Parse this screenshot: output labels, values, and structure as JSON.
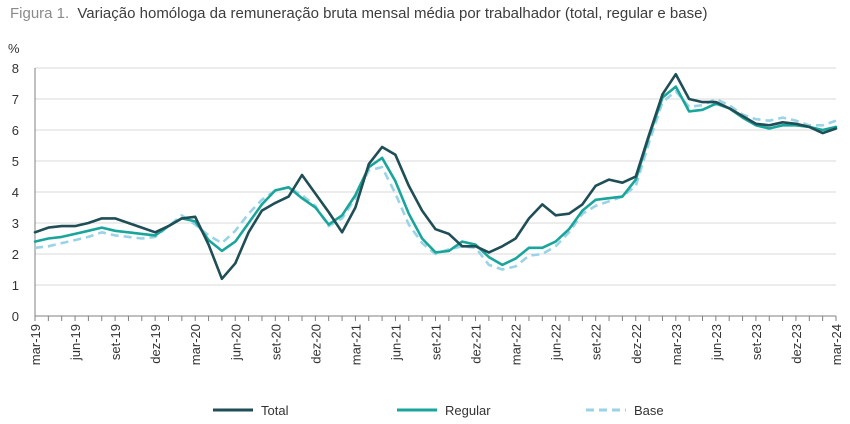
{
  "chart_data": {
    "type": "line",
    "title_prefix": "Figura 1.",
    "title": "Variação homóloga da remuneração bruta mensal média por trabalhador (total, regular e base)",
    "ylabel": "%",
    "xlabel": "",
    "ylim": [
      0,
      8
    ],
    "yticks": [
      "0",
      "1",
      "2",
      "3",
      "4",
      "5",
      "6",
      "7",
      "8"
    ],
    "x_tick_labels": [
      "mar-19",
      "jun-19",
      "set-19",
      "dez-19",
      "mar-20",
      "jun-20",
      "set-20",
      "dez-20",
      "mar-21",
      "jun-21",
      "set-21",
      "dez-21",
      "mar-22",
      "jun-22",
      "set-22",
      "dez-22",
      "mar-23",
      "jun-23",
      "set-23",
      "dez-23",
      "mar-24"
    ],
    "grid": true,
    "legend_position": "bottom",
    "series": [
      {
        "name": "Total",
        "color": "#1f4e56",
        "dash": "solid",
        "values": [
          2.7,
          2.85,
          2.9,
          2.9,
          3.0,
          3.15,
          3.15,
          3.0,
          2.85,
          2.7,
          2.9,
          3.15,
          3.2,
          2.3,
          1.2,
          1.7,
          2.7,
          3.4,
          3.65,
          3.85,
          4.55,
          3.95,
          3.35,
          2.7,
          3.5,
          4.9,
          5.45,
          5.2,
          4.2,
          3.4,
          2.8,
          2.65,
          2.25,
          2.25,
          2.05,
          2.25,
          2.5,
          3.15,
          3.6,
          3.25,
          3.3,
          3.6,
          4.2,
          4.4,
          4.3,
          4.5,
          5.85,
          7.15,
          7.8,
          7.0,
          6.9,
          6.9,
          6.7,
          6.45,
          6.2,
          6.15,
          6.25,
          6.2,
          6.1,
          5.9,
          6.05
        ]
      },
      {
        "name": "Regular",
        "color": "#1aa59b",
        "dash": "solid",
        "values": [
          2.4,
          2.5,
          2.55,
          2.65,
          2.75,
          2.85,
          2.75,
          2.7,
          2.65,
          2.6,
          2.9,
          3.15,
          3.05,
          2.45,
          2.1,
          2.4,
          3.0,
          3.6,
          4.05,
          4.15,
          3.8,
          3.5,
          2.95,
          3.25,
          3.9,
          4.8,
          5.1,
          4.35,
          3.3,
          2.5,
          2.05,
          2.1,
          2.4,
          2.3,
          1.9,
          1.65,
          1.85,
          2.2,
          2.2,
          2.4,
          2.8,
          3.4,
          3.75,
          3.8,
          3.85,
          4.4,
          5.8,
          7.05,
          7.4,
          6.6,
          6.65,
          6.85,
          6.7,
          6.4,
          6.15,
          6.05,
          6.15,
          6.15,
          6.1,
          6.0,
          6.1
        ]
      },
      {
        "name": "Base",
        "color": "#9ad3e6",
        "dash": "dashed",
        "values": [
          2.2,
          2.25,
          2.35,
          2.45,
          2.55,
          2.7,
          2.6,
          2.55,
          2.5,
          2.55,
          2.9,
          3.25,
          2.95,
          2.6,
          2.35,
          2.75,
          3.3,
          3.75,
          4.05,
          4.15,
          3.9,
          3.55,
          2.9,
          3.15,
          3.8,
          4.7,
          4.8,
          3.95,
          2.95,
          2.35,
          2.0,
          2.15,
          2.25,
          2.2,
          1.65,
          1.5,
          1.6,
          1.95,
          2.0,
          2.25,
          2.7,
          3.3,
          3.55,
          3.7,
          3.85,
          4.2,
          5.6,
          6.9,
          7.25,
          6.75,
          6.8,
          7.0,
          6.8,
          6.5,
          6.35,
          6.3,
          6.4,
          6.3,
          6.15,
          6.15,
          6.3
        ]
      }
    ]
  }
}
